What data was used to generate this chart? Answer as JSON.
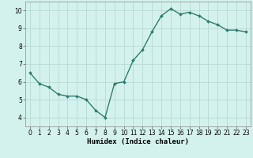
{
  "x": [
    0,
    1,
    2,
    3,
    4,
    5,
    6,
    7,
    8,
    9,
    10,
    11,
    12,
    13,
    14,
    15,
    16,
    17,
    18,
    19,
    20,
    21,
    22,
    23
  ],
  "y": [
    6.5,
    5.9,
    5.7,
    5.3,
    5.2,
    5.2,
    5.0,
    4.4,
    4.0,
    5.9,
    6.0,
    7.2,
    7.8,
    8.8,
    9.7,
    10.1,
    9.8,
    9.9,
    9.7,
    9.4,
    9.2,
    8.9,
    8.9,
    8.8
  ],
  "line_color": "#2e7d6e",
  "marker": "D",
  "marker_size": 2.0,
  "linewidth": 1.0,
  "bg_color": "#d4f2ed",
  "grid_color": "#b8d8d2",
  "xlabel": "Humidex (Indice chaleur)",
  "xlim": [
    -0.5,
    23.5
  ],
  "ylim": [
    3.5,
    10.5
  ],
  "yticks": [
    4,
    5,
    6,
    7,
    8,
    9,
    10
  ],
  "xticks": [
    0,
    1,
    2,
    3,
    4,
    5,
    6,
    7,
    8,
    9,
    10,
    11,
    12,
    13,
    14,
    15,
    16,
    17,
    18,
    19,
    20,
    21,
    22,
    23
  ],
  "xlabel_fontsize": 6.5,
  "tick_fontsize": 5.5
}
